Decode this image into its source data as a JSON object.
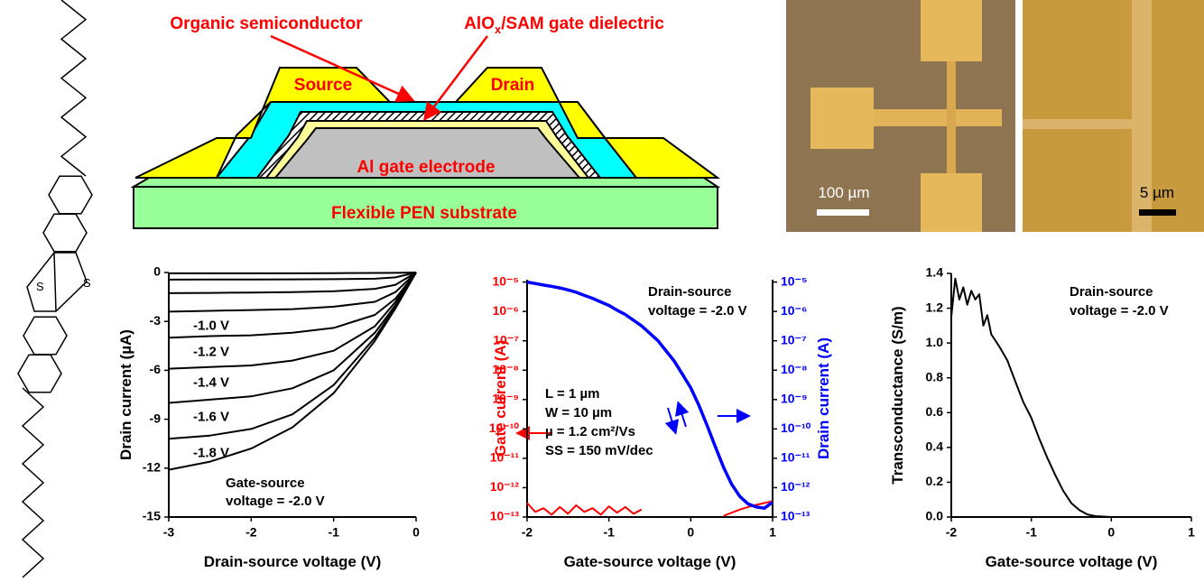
{
  "diagram": {
    "semiconductor_label": "Organic semiconductor",
    "dielectric_label": [
      "AlO",
      "x",
      "/SAM gate dielectric"
    ],
    "source": "Source",
    "drain": "Drain",
    "gate": "Al gate electrode",
    "substrate": "Flexible PEN substrate"
  },
  "molecule": {
    "atoms": [
      "S",
      "S"
    ]
  },
  "micrographs": {
    "scale_left": "100 µm",
    "scale_right": "5 µm"
  },
  "chart_data": [
    {
      "type": "line",
      "xlabel": "Drain-source voltage (V)",
      "ylabel": "Drain current (µA)",
      "x": [
        -3,
        -2.5,
        -2,
        -1.5,
        -1,
        -0.5,
        -0.25,
        0
      ],
      "xlim": [
        -3,
        0
      ],
      "xticks": [
        -3,
        -2,
        -1,
        0
      ],
      "ylim": [
        -15,
        0
      ],
      "yticks": [
        0,
        -3,
        -6,
        -9,
        -12,
        -15
      ],
      "series": [
        {
          "color": "#000000",
          "values": [
            -0.05,
            -0.05,
            -0.05,
            -0.05,
            -0.04,
            -0.03,
            -0.02,
            0
          ]
        },
        {
          "color": "#000000",
          "values": [
            -0.44,
            -0.43,
            -0.43,
            -0.42,
            -0.41,
            -0.38,
            -0.3,
            0
          ]
        },
        {
          "color": "#000000",
          "values": [
            -1.27,
            -1.25,
            -1.23,
            -1.2,
            -1.15,
            -1.0,
            -0.75,
            0
          ]
        },
        {
          "name": "-1.0 V",
          "color": "#000000",
          "values": [
            -2.4,
            -2.35,
            -2.3,
            -2.25,
            -2.1,
            -1.8,
            -1.2,
            0
          ]
        },
        {
          "name": "-1.2 V",
          "color": "#000000",
          "values": [
            -4.0,
            -3.9,
            -3.85,
            -3.7,
            -3.4,
            -2.6,
            -1.6,
            0
          ]
        },
        {
          "name": "-1.4 V",
          "color": "#000000",
          "values": [
            -5.9,
            -5.8,
            -5.7,
            -5.4,
            -4.8,
            -3.3,
            -1.8,
            0
          ]
        },
        {
          "name": "-1.6 V",
          "color": "#000000",
          "values": [
            -8.0,
            -7.8,
            -7.6,
            -7.1,
            -6.0,
            -3.7,
            -2.0,
            0
          ]
        },
        {
          "name": "-1.8 V",
          "color": "#000000",
          "values": [
            -10.2,
            -10.0,
            -9.6,
            -8.7,
            -6.9,
            -4.0,
            -2.1,
            0
          ]
        },
        {
          "color": "#000000",
          "values": [
            -12.1,
            -11.6,
            -10.8,
            -9.5,
            -7.4,
            -4.2,
            -2.2,
            0
          ]
        }
      ],
      "annotations": [
        "Gate-source",
        "voltage = -2.0 V"
      ]
    },
    {
      "type": "line",
      "log_y": true,
      "xlabel": "Gate-source voltage (V)",
      "ylabel": "Gate current (A)",
      "y2label": "Drain current (A)",
      "y_axis_color": "#ff0000",
      "y2_axis_color": "#0000ff",
      "x": [
        -2.0,
        -1.9,
        -1.8,
        -1.7,
        -1.6,
        -1.5,
        -1.4,
        -1.3,
        -1.2,
        -1.1,
        -1.0,
        -0.9,
        -0.8,
        -0.7,
        -0.6,
        -0.5,
        -0.4,
        -0.3,
        -0.2,
        -0.1,
        0.0,
        0.1,
        0.2,
        0.3,
        0.4,
        0.5,
        0.6,
        0.7,
        0.8,
        0.9,
        1.0
      ],
      "xlim": [
        -2,
        1
      ],
      "xticks": [
        -2,
        -1,
        0,
        1
      ],
      "ylim": [
        1e-13,
        1.2e-05
      ],
      "y2lim": [
        1e-13,
        1.2e-05
      ],
      "yticks": [
        {
          "value": 1e-05,
          "label": "10⁻⁵"
        },
        {
          "value": 1e-06,
          "label": "10⁻⁶"
        },
        {
          "value": 1e-07,
          "label": "10⁻⁷"
        },
        {
          "value": 1e-08,
          "label": "10⁻⁸"
        },
        {
          "value": 1e-09,
          "label": "10⁻⁹"
        },
        {
          "value": 1e-10,
          "label": "10⁻¹⁰"
        },
        {
          "value": 1e-11,
          "label": "10⁻¹¹"
        },
        {
          "value": 1e-12,
          "label": "10⁻¹²"
        },
        {
          "value": 1e-13,
          "label": "10⁻¹³"
        }
      ],
      "y2ticks": [
        {
          "value": 1e-05,
          "label": "10⁻⁵"
        },
        {
          "value": 1e-06,
          "label": "10⁻⁶"
        },
        {
          "value": 1e-07,
          "label": "10⁻⁷"
        },
        {
          "value": 1e-08,
          "label": "10⁻⁸"
        },
        {
          "value": 1e-09,
          "label": "10⁻⁹"
        },
        {
          "value": 1e-10,
          "label": "10⁻¹⁰"
        },
        {
          "value": 1e-11,
          "label": "10⁻¹¹"
        },
        {
          "value": 1e-12,
          "label": "10⁻¹²"
        },
        {
          "value": 1e-13,
          "label": "10⁻¹³"
        }
      ],
      "series": [
        {
          "color": "#ff0000",
          "values": [
            3e-13,
            1.5e-13,
            2e-13,
            1.2e-13,
            2.2e-13,
            1.3e-13,
            2.5e-13,
            1.5e-13,
            2e-13,
            1.2e-13,
            2.3e-13,
            1.4e-13,
            2.2e-13,
            1.3e-13,
            1.8e-13,
            null,
            null,
            null,
            null,
            null,
            null,
            null,
            null,
            null,
            1.1e-13,
            1.4e-13,
            1.8e-13,
            2.2e-13,
            2.6e-13,
            3e-13,
            3.5e-13
          ]
        },
        {
          "color": "#0000ff",
          "axis": "y2",
          "values": [
            1e-05,
            8.9e-06,
            7.9e-06,
            7.1e-06,
            6.3e-06,
            5.4e-06,
            4.5e-06,
            3.5e-06,
            2.8e-06,
            2.1e-06,
            1.6e-06,
            1.1e-06,
            7.9e-07,
            5e-07,
            3.2e-07,
            1.8e-07,
            1e-07,
            4.5e-08,
            2e-08,
            7.1e-09,
            2.5e-09,
            6.3e-10,
            1.3e-10,
            2.5e-11,
            5e-12,
            1.3e-12,
            5e-13,
            2.8e-13,
            2.2e-13,
            2e-13,
            3.2e-13
          ]
        }
      ],
      "annotations": [
        "Drain-source",
        "voltage = -2.0 V",
        "L = 1 µm",
        "W = 10 µm",
        "µ = 1.2 cm²/Vs",
        "SS = 150 mV/dec"
      ]
    },
    {
      "type": "line",
      "xlabel": "Gate-source voltage (V)",
      "ylabel": "Transconductance (S/m)",
      "x": [
        -2.0,
        -1.95,
        -1.9,
        -1.85,
        -1.8,
        -1.75,
        -1.7,
        -1.65,
        -1.6,
        -1.55,
        -1.5,
        -1.4,
        -1.3,
        -1.2,
        -1.1,
        -1.0,
        -0.9,
        -0.8,
        -0.7,
        -0.6,
        -0.5,
        -0.4,
        -0.3,
        -0.2,
        0,
        0.5,
        1.0
      ],
      "xlim": [
        -2,
        1
      ],
      "xticks": [
        -2,
        -1,
        0,
        1
      ],
      "ylim": [
        0,
        1.4
      ],
      "yticks": [
        {
          "value": 0,
          "label": "0.0"
        },
        0.2,
        0.4,
        0.6,
        0.8,
        {
          "value": 1,
          "label": "1.0"
        },
        1.2,
        1.4
      ],
      "series": [
        {
          "color": "#000000",
          "values": [
            1.15,
            1.37,
            1.25,
            1.32,
            1.22,
            1.3,
            1.25,
            1.28,
            1.1,
            1.16,
            1.05,
            0.98,
            0.9,
            0.78,
            0.66,
            0.57,
            0.45,
            0.34,
            0.24,
            0.15,
            0.08,
            0.04,
            0.015,
            0.005,
            0,
            0,
            0
          ]
        }
      ],
      "annotations": [
        "Drain-source",
        "voltage = -2.0 V"
      ]
    }
  ]
}
